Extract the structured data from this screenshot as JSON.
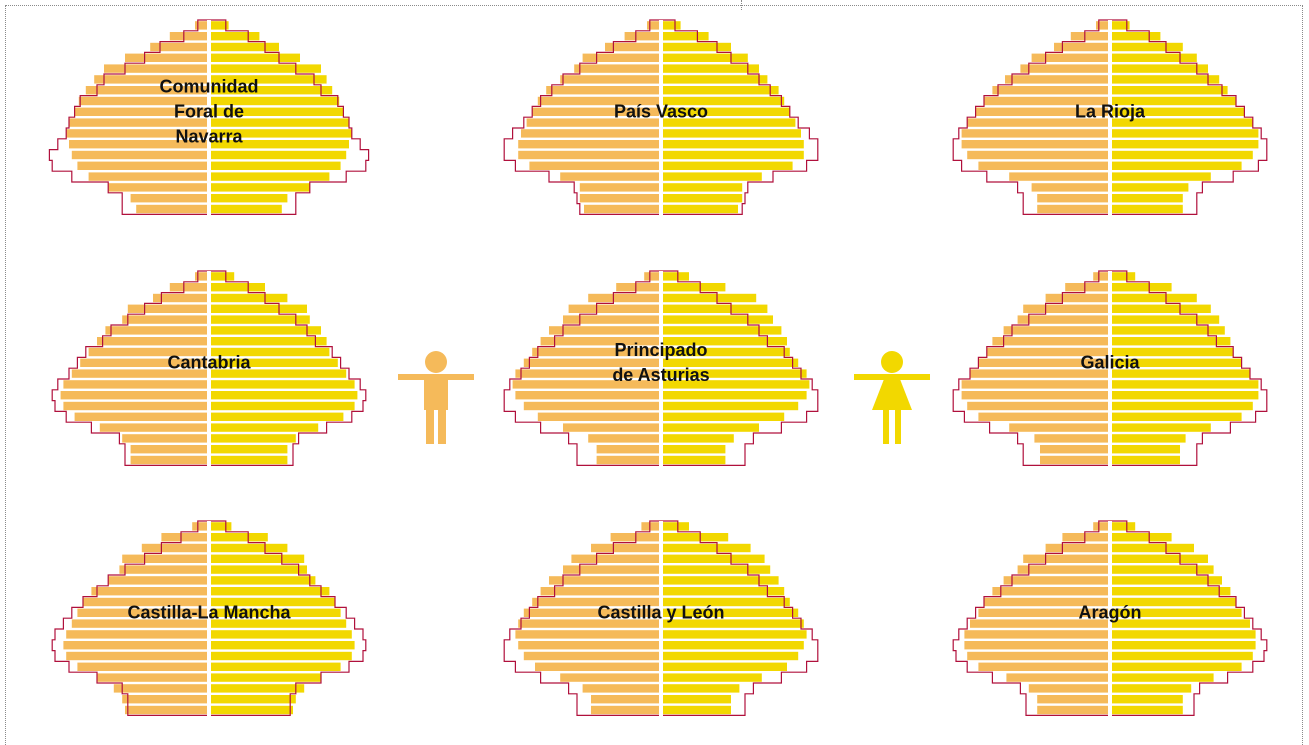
{
  "colors": {
    "male": "#F5BA5A",
    "female": "#F2D800",
    "outline": "#B0103C",
    "axis": "#ffffff"
  },
  "icons": {
    "male": "male-figure-icon",
    "female": "female-figure-icon"
  },
  "chart_data": [
    {
      "type": "bar",
      "title": [
        "Comunidad",
        "Foral de",
        "Navarra"
      ],
      "male": [
        0.52,
        0.56,
        0.72,
        0.86,
        0.94,
        0.98,
        1.0,
        1.02,
        1.0,
        0.96,
        0.93,
        0.88,
        0.82,
        0.75,
        0.6,
        0.42,
        0.28,
        0.1
      ],
      "female": [
        0.52,
        0.56,
        0.72,
        0.86,
        0.94,
        0.98,
        1.0,
        1.02,
        1.0,
        0.96,
        0.93,
        0.88,
        0.84,
        0.8,
        0.65,
        0.5,
        0.36,
        0.14
      ],
      "ref_male": [
        0.62,
        0.62,
        0.72,
        0.98,
        1.12,
        1.14,
        1.08,
        1.02,
        1.0,
        0.96,
        0.92,
        0.8,
        0.75,
        0.6,
        0.46,
        0.35,
        0.18,
        0.08
      ],
      "ref_female": [
        0.62,
        0.62,
        0.72,
        0.98,
        1.12,
        1.14,
        1.08,
        1.02,
        1.0,
        0.96,
        0.92,
        0.8,
        0.75,
        0.62,
        0.5,
        0.4,
        0.28,
        0.12
      ]
    },
    {
      "type": "bar",
      "title": [
        "País Vasco"
      ],
      "male": [
        0.55,
        0.58,
        0.58,
        0.72,
        0.94,
        1.02,
        1.02,
        1.0,
        0.96,
        0.92,
        0.88,
        0.82,
        0.72,
        0.62,
        0.56,
        0.4,
        0.26,
        0.1
      ],
      "female": [
        0.55,
        0.58,
        0.58,
        0.72,
        0.94,
        1.02,
        1.02,
        1.0,
        0.96,
        0.92,
        0.88,
        0.84,
        0.76,
        0.7,
        0.62,
        0.5,
        0.34,
        0.14
      ],
      "ref_male": [
        0.58,
        0.6,
        0.62,
        0.8,
        1.04,
        1.12,
        1.12,
        1.06,
        0.98,
        0.92,
        0.86,
        0.78,
        0.7,
        0.58,
        0.46,
        0.34,
        0.18,
        0.08
      ],
      "ref_female": [
        0.58,
        0.6,
        0.62,
        0.8,
        1.04,
        1.12,
        1.12,
        1.06,
        0.98,
        0.92,
        0.86,
        0.78,
        0.7,
        0.62,
        0.5,
        0.4,
        0.26,
        0.1
      ]
    },
    {
      "type": "bar",
      "title": [
        "La Rioja"
      ],
      "male": [
        0.52,
        0.52,
        0.56,
        0.72,
        0.94,
        1.02,
        1.06,
        1.06,
        1.02,
        0.96,
        0.9,
        0.84,
        0.75,
        0.64,
        0.56,
        0.4,
        0.28,
        0.1
      ],
      "female": [
        0.52,
        0.52,
        0.56,
        0.72,
        0.94,
        1.02,
        1.06,
        1.06,
        1.02,
        0.96,
        0.9,
        0.84,
        0.78,
        0.7,
        0.62,
        0.52,
        0.36,
        0.14
      ],
      "ref_male": [
        0.62,
        0.62,
        0.66,
        0.88,
        1.06,
        1.12,
        1.12,
        1.08,
        1.02,
        0.96,
        0.9,
        0.8,
        0.7,
        0.58,
        0.46,
        0.34,
        0.18,
        0.08
      ],
      "ref_female": [
        0.62,
        0.62,
        0.66,
        0.88,
        1.06,
        1.12,
        1.12,
        1.08,
        1.02,
        0.96,
        0.9,
        0.8,
        0.7,
        0.62,
        0.5,
        0.4,
        0.28,
        0.12
      ]
    },
    {
      "type": "bar",
      "title": [
        "Cantabria"
      ],
      "male": [
        0.56,
        0.56,
        0.62,
        0.78,
        0.96,
        1.04,
        1.06,
        1.04,
        0.98,
        0.92,
        0.86,
        0.8,
        0.74,
        0.62,
        0.58,
        0.4,
        0.28,
        0.1
      ],
      "female": [
        0.56,
        0.56,
        0.62,
        0.78,
        0.96,
        1.04,
        1.06,
        1.04,
        0.98,
        0.92,
        0.86,
        0.84,
        0.8,
        0.72,
        0.7,
        0.56,
        0.4,
        0.18
      ],
      "ref_male": [
        0.6,
        0.6,
        0.64,
        0.84,
        1.02,
        1.1,
        1.12,
        1.08,
        1.0,
        0.94,
        0.88,
        0.76,
        0.7,
        0.58,
        0.46,
        0.34,
        0.18,
        0.08
      ],
      "ref_female": [
        0.6,
        0.6,
        0.64,
        0.84,
        1.02,
        1.1,
        1.12,
        1.08,
        1.0,
        0.94,
        0.88,
        0.76,
        0.7,
        0.62,
        0.5,
        0.4,
        0.28,
        0.12
      ]
    },
    {
      "type": "bar",
      "title": [
        "Principado",
        "de Asturias"
      ],
      "male": [
        0.46,
        0.46,
        0.52,
        0.7,
        0.88,
        0.98,
        1.04,
        1.06,
        1.04,
        0.98,
        0.92,
        0.86,
        0.8,
        0.7,
        0.66,
        0.52,
        0.32,
        0.12
      ],
      "female": [
        0.46,
        0.46,
        0.52,
        0.7,
        0.88,
        0.98,
        1.04,
        1.06,
        1.04,
        0.98,
        0.92,
        0.9,
        0.86,
        0.8,
        0.76,
        0.68,
        0.46,
        0.2
      ],
      "ref_male": [
        0.6,
        0.6,
        0.66,
        0.86,
        1.04,
        1.12,
        1.12,
        1.08,
        1.0,
        0.94,
        0.88,
        0.76,
        0.7,
        0.58,
        0.46,
        0.34,
        0.18,
        0.08
      ],
      "ref_female": [
        0.6,
        0.6,
        0.66,
        0.86,
        1.04,
        1.12,
        1.12,
        1.08,
        1.0,
        0.94,
        0.88,
        0.76,
        0.7,
        0.62,
        0.5,
        0.4,
        0.28,
        0.12
      ]
    },
    {
      "type": "bar",
      "title": [
        "Galicia"
      ],
      "male": [
        0.5,
        0.5,
        0.54,
        0.72,
        0.94,
        1.02,
        1.06,
        1.06,
        1.0,
        0.94,
        0.88,
        0.84,
        0.76,
        0.66,
        0.62,
        0.46,
        0.32,
        0.12
      ],
      "female": [
        0.5,
        0.5,
        0.54,
        0.72,
        0.94,
        1.02,
        1.06,
        1.06,
        1.0,
        0.94,
        0.88,
        0.86,
        0.82,
        0.78,
        0.72,
        0.62,
        0.44,
        0.18
      ],
      "ref_male": [
        0.62,
        0.62,
        0.66,
        0.86,
        1.04,
        1.12,
        1.12,
        1.08,
        1.0,
        0.94,
        0.88,
        0.76,
        0.7,
        0.58,
        0.46,
        0.34,
        0.18,
        0.08
      ],
      "ref_female": [
        0.62,
        0.62,
        0.66,
        0.86,
        1.04,
        1.12,
        1.12,
        1.08,
        1.0,
        0.94,
        0.88,
        0.76,
        0.7,
        0.62,
        0.5,
        0.4,
        0.28,
        0.12
      ]
    },
    {
      "type": "bar",
      "title": [
        "Castilla-La Mancha"
      ],
      "male": [
        0.6,
        0.62,
        0.68,
        0.8,
        0.94,
        1.02,
        1.04,
        1.02,
        0.98,
        0.94,
        0.9,
        0.84,
        0.72,
        0.64,
        0.62,
        0.48,
        0.34,
        0.12
      ],
      "female": [
        0.6,
        0.62,
        0.68,
        0.8,
        0.94,
        1.02,
        1.04,
        1.02,
        0.98,
        0.94,
        0.9,
        0.86,
        0.76,
        0.7,
        0.68,
        0.56,
        0.42,
        0.16
      ],
      "ref_male": [
        0.58,
        0.58,
        0.62,
        0.8,
        1.0,
        1.1,
        1.12,
        1.1,
        1.04,
        0.98,
        0.9,
        0.8,
        0.72,
        0.6,
        0.46,
        0.34,
        0.2,
        0.08
      ],
      "ref_female": [
        0.58,
        0.58,
        0.62,
        0.8,
        1.0,
        1.1,
        1.12,
        1.1,
        1.04,
        0.98,
        0.9,
        0.8,
        0.72,
        0.64,
        0.52,
        0.4,
        0.28,
        0.12
      ]
    },
    {
      "type": "bar",
      "title": [
        "Castilla y León"
      ],
      "male": [
        0.5,
        0.5,
        0.56,
        0.72,
        0.9,
        0.98,
        1.02,
        1.04,
        1.02,
        0.98,
        0.92,
        0.86,
        0.8,
        0.7,
        0.64,
        0.5,
        0.36,
        0.14
      ],
      "female": [
        0.5,
        0.5,
        0.56,
        0.72,
        0.9,
        0.98,
        1.02,
        1.04,
        1.02,
        0.98,
        0.92,
        0.88,
        0.84,
        0.78,
        0.74,
        0.64,
        0.48,
        0.2
      ],
      "ref_male": [
        0.6,
        0.6,
        0.66,
        0.86,
        1.04,
        1.12,
        1.12,
        1.08,
        1.0,
        0.94,
        0.88,
        0.76,
        0.7,
        0.58,
        0.46,
        0.34,
        0.18,
        0.08
      ],
      "ref_female": [
        0.6,
        0.6,
        0.66,
        0.86,
        1.04,
        1.12,
        1.12,
        1.08,
        1.0,
        0.94,
        0.88,
        0.76,
        0.7,
        0.62,
        0.5,
        0.4,
        0.28,
        0.12
      ]
    },
    {
      "type": "bar",
      "title": [
        "Aragón"
      ],
      "male": [
        0.52,
        0.52,
        0.58,
        0.74,
        0.94,
        1.02,
        1.04,
        1.04,
        1.0,
        0.94,
        0.9,
        0.84,
        0.76,
        0.66,
        0.62,
        0.46,
        0.34,
        0.12
      ],
      "female": [
        0.52,
        0.52,
        0.58,
        0.74,
        0.94,
        1.02,
        1.04,
        1.04,
        1.0,
        0.94,
        0.9,
        0.86,
        0.8,
        0.74,
        0.7,
        0.6,
        0.44,
        0.18
      ],
      "ref_male": [
        0.6,
        0.6,
        0.64,
        0.84,
        1.02,
        1.1,
        1.12,
        1.08,
        1.02,
        0.96,
        0.9,
        0.78,
        0.7,
        0.58,
        0.46,
        0.34,
        0.18,
        0.08
      ],
      "ref_female": [
        0.6,
        0.6,
        0.64,
        0.84,
        1.02,
        1.1,
        1.12,
        1.08,
        1.02,
        0.96,
        0.9,
        0.78,
        0.7,
        0.62,
        0.5,
        0.4,
        0.28,
        0.12
      ]
    }
  ]
}
